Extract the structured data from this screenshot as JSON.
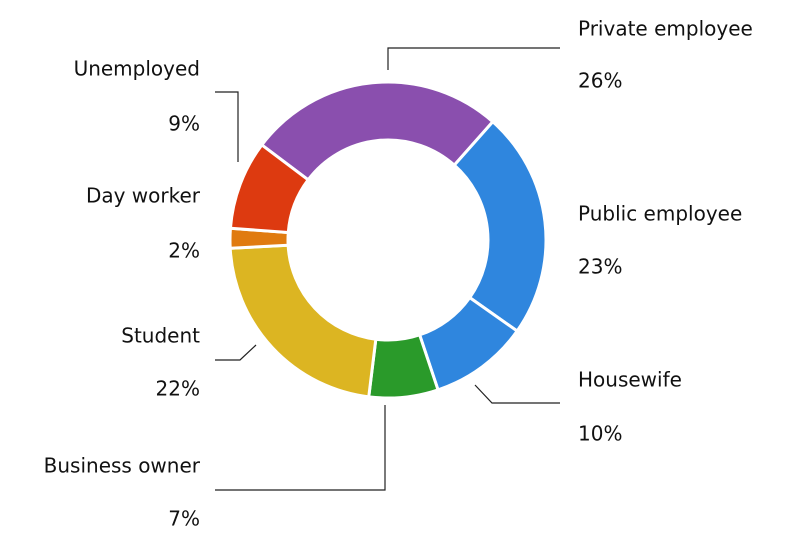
{
  "chart_data": {
    "type": "donut",
    "categories": [
      "Private employee",
      "Public employee",
      "Housewife",
      "Business owner",
      "Student",
      "Day worker",
      "Unemployed"
    ],
    "values": [
      26,
      23,
      10,
      7,
      22,
      2,
      9
    ],
    "value_labels": [
      "26%",
      "23%",
      "10%",
      "7%",
      "22%",
      "2%",
      "9%"
    ],
    "colors": [
      "#8a4fae",
      "#2f86de",
      "#2f86de",
      "#2a9a2a",
      "#dcb522",
      "#e07b10",
      "#dd3a10"
    ]
  }
}
